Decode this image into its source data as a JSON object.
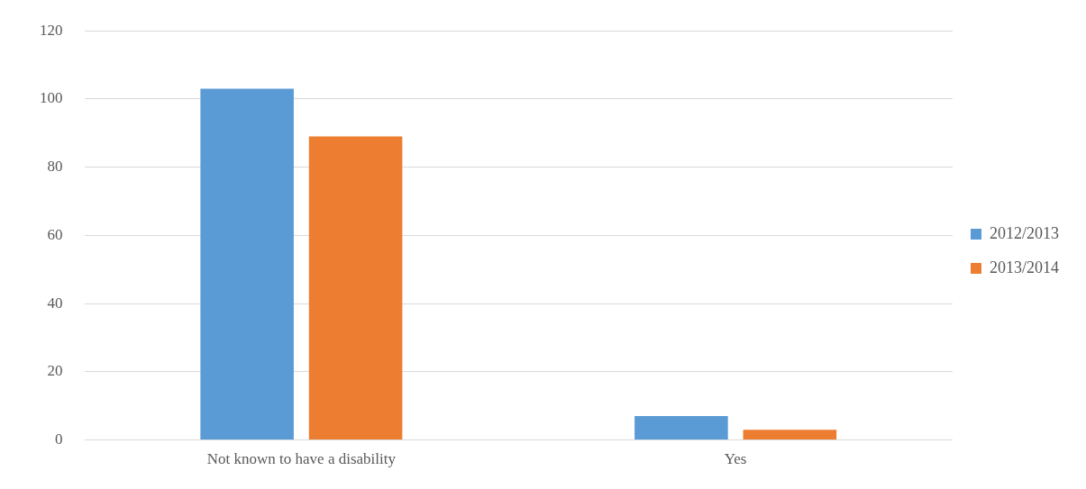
{
  "chart_data": {
    "type": "bar",
    "categories": [
      "Not known to have a disability",
      "Yes"
    ],
    "series": [
      {
        "name": "2012/2013",
        "color": "#5b9bd5",
        "values": [
          103,
          7
        ]
      },
      {
        "name": "2013/2014",
        "color": "#ed7d31",
        "values": [
          89,
          3
        ]
      }
    ],
    "ylim": [
      0,
      120
    ],
    "yticks": [
      0,
      20,
      40,
      60,
      80,
      100,
      120
    ],
    "grid": "y",
    "legend": "right"
  }
}
